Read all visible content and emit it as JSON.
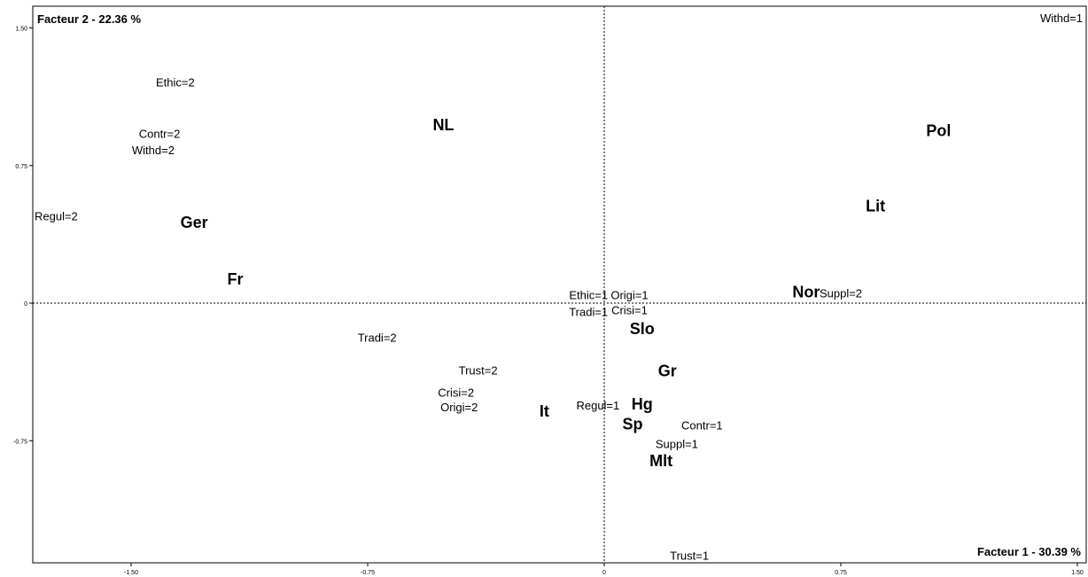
{
  "chart_data": {
    "type": "scatter",
    "title": "",
    "xlabel": "Facteur 1  -  30.39 %",
    "ylabel": "Facteur 2  -  22.36 %",
    "xlim": [
      -1.75,
      1.52
    ],
    "ylim": [
      -1.38,
      1.6
    ],
    "x_ticks": [
      "-1.50",
      "-0.75",
      "0",
      "0.75",
      "1.50"
    ],
    "y_ticks": [
      "1.50",
      "0.75",
      "0",
      "-0.75"
    ],
    "grid": false,
    "points": [
      {
        "label": "Withd=1",
        "x": 1.5,
        "y": 1.55,
        "kind": "var"
      },
      {
        "label": "Ethic=2",
        "x": -1.36,
        "y": 1.2,
        "kind": "var"
      },
      {
        "label": "Contr=2",
        "x": -1.41,
        "y": 0.92,
        "kind": "var"
      },
      {
        "label": "Withd=2",
        "x": -1.43,
        "y": 0.83,
        "kind": "var"
      },
      {
        "label": "Regul=2",
        "x": -1.74,
        "y": 0.47,
        "kind": "var"
      },
      {
        "label": "NL",
        "x": -0.51,
        "y": 0.97,
        "kind": "country"
      },
      {
        "label": "Ger",
        "x": -1.3,
        "y": 0.44,
        "kind": "country"
      },
      {
        "label": "Fr",
        "x": -1.17,
        "y": 0.13,
        "kind": "country"
      },
      {
        "label": "Pol",
        "x": 1.06,
        "y": 0.94,
        "kind": "country"
      },
      {
        "label": "Lit",
        "x": 0.86,
        "y": 0.53,
        "kind": "country"
      },
      {
        "label": "Nor",
        "x": 0.64,
        "y": 0.06,
        "kind": "country"
      },
      {
        "label": "Suppl=2",
        "x": 0.75,
        "y": 0.05,
        "kind": "var"
      },
      {
        "label": "Ethic=1",
        "x": -0.05,
        "y": 0.04,
        "kind": "var"
      },
      {
        "label": "Origi=1",
        "x": 0.08,
        "y": 0.04,
        "kind": "var"
      },
      {
        "label": "Tradi=1",
        "x": -0.05,
        "y": -0.05,
        "kind": "var"
      },
      {
        "label": "Crisi=1",
        "x": 0.08,
        "y": -0.04,
        "kind": "var"
      },
      {
        "label": "Slo",
        "x": 0.12,
        "y": -0.14,
        "kind": "country"
      },
      {
        "label": "Tradi=2",
        "x": -0.72,
        "y": -0.19,
        "kind": "var"
      },
      {
        "label": "Trust=2",
        "x": -0.4,
        "y": -0.37,
        "kind": "var"
      },
      {
        "label": "Gr",
        "x": 0.2,
        "y": -0.37,
        "kind": "country"
      },
      {
        "label": "Crisi=2",
        "x": -0.47,
        "y": -0.49,
        "kind": "var"
      },
      {
        "label": "Origi=2",
        "x": -0.46,
        "y": -0.57,
        "kind": "var"
      },
      {
        "label": "It",
        "x": -0.19,
        "y": -0.59,
        "kind": "country"
      },
      {
        "label": "Regul=1",
        "x": -0.02,
        "y": -0.56,
        "kind": "var"
      },
      {
        "label": "Hg",
        "x": 0.12,
        "y": -0.55,
        "kind": "country"
      },
      {
        "label": "Sp",
        "x": 0.09,
        "y": -0.66,
        "kind": "country"
      },
      {
        "label": "Contr=1",
        "x": 0.31,
        "y": -0.67,
        "kind": "var"
      },
      {
        "label": "Suppl=1",
        "x": 0.23,
        "y": -0.77,
        "kind": "var"
      },
      {
        "label": "Mlt",
        "x": 0.18,
        "y": -0.86,
        "kind": "country"
      },
      {
        "label": "Trust=1",
        "x": 0.27,
        "y": -1.38,
        "kind": "var"
      }
    ]
  }
}
